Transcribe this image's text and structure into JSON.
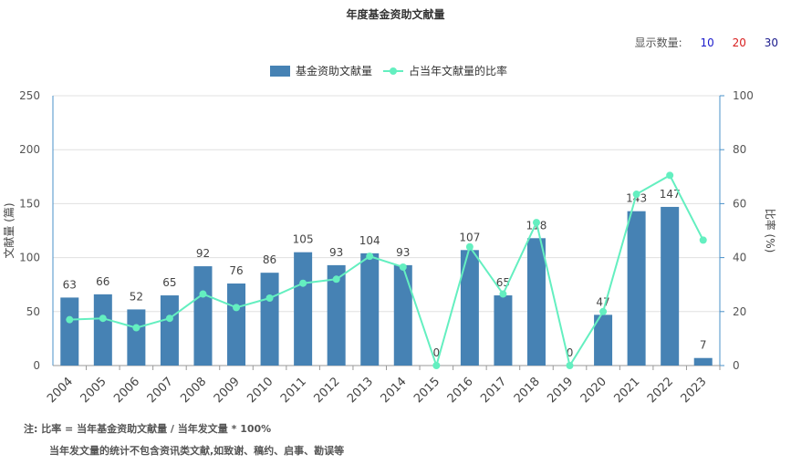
{
  "title": "年度基金资助文献量",
  "display_count": {
    "label": "显示数量:",
    "options": [
      {
        "label": "10",
        "color": "#1a1acc"
      },
      {
        "label": "20",
        "color": "#d81e1e"
      },
      {
        "label": "30",
        "color": "#1a1a8c"
      }
    ]
  },
  "notes": {
    "line1": "注:  比率 = 当年基金资助文献量 / 当年发文量 * 100%",
    "line2": "当年发文量的统计不包含资讯类文献,如致谢、稿约、启事、勘误等"
  },
  "colors": {
    "bar": "#4682b4",
    "line": "#64efc0",
    "axis": "#4a90c8",
    "grid": "#e0e0e0"
  },
  "chart_data": {
    "type": "bar",
    "categories": [
      "2004",
      "2005",
      "2006",
      "2007",
      "2008",
      "2009",
      "2010",
      "2011",
      "2012",
      "2013",
      "2014",
      "2015",
      "2016",
      "2017",
      "2018",
      "2019",
      "2020",
      "2021",
      "2022",
      "2023"
    ],
    "series": [
      {
        "name": "基金资助文献量",
        "type": "bar",
        "axis": "left",
        "values": [
          63,
          66,
          52,
          65,
          92,
          76,
          86,
          105,
          93,
          104,
          93,
          0,
          107,
          65,
          118,
          0,
          47,
          143,
          147,
          7
        ]
      },
      {
        "name": "占当年文献量的比率",
        "type": "line",
        "axis": "right",
        "values": [
          17,
          17.5,
          14,
          17.5,
          26.5,
          21.5,
          25,
          30.5,
          32,
          40.5,
          36.5,
          0,
          44,
          26.5,
          53,
          0,
          20,
          63.5,
          70.5,
          46.5
        ]
      }
    ],
    "ylabel": "文献量 (篇)",
    "y2label": "比率 (%)",
    "ylim": [
      0,
      250
    ],
    "y2lim": [
      0,
      100
    ],
    "yticks": [
      0,
      50,
      100,
      150,
      200,
      250
    ],
    "y2ticks": [
      0,
      20,
      40,
      60,
      80,
      100
    ],
    "grid": true,
    "legend": "top-center"
  }
}
